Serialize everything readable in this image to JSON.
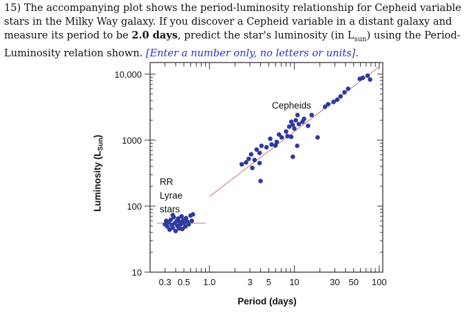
{
  "question": {
    "number": "15)",
    "text_1": "The accompanying plot shows the period-luminosity relationship for Cepheid variable stars in the Milky Way galaxy.  If you discover a Cepheid variable in a distant galaxy and measure its period to be ",
    "bold_period": "2.0 days",
    "text_2": ", predict the star's luminosity (in L",
    "sub_sun": "sun",
    "text_3": ") using the Period-Luminosity relation shown.  ",
    "instruction": "[Enter a number only, no letters or units]."
  },
  "chart_data": {
    "type": "scatter",
    "xscale": "log",
    "yscale": "log",
    "xlim": [
      0.2,
      110
    ],
    "ylim": [
      10,
      15000
    ],
    "x_ticks": [
      0.3,
      0.5,
      1.0,
      3,
      5,
      10,
      30,
      50,
      100
    ],
    "x_tick_labels": [
      "0.3",
      "0.5",
      "1.0",
      "3",
      "5",
      "10",
      "30",
      "50",
      "100"
    ],
    "y_ticks": [
      10,
      100,
      1000,
      10000
    ],
    "y_tick_labels": [
      "10",
      "100",
      "1000",
      "10,000"
    ],
    "xlabel": "Period (days)",
    "ylabel_main": "Luminosity (L",
    "ylabel_sub": "Sun",
    "ylabel_end": ")",
    "point_color": "#2e3a9e",
    "line_color": "#c97070",
    "annotations": {
      "cepheids": "Cepheids",
      "rr_lyrae": [
        "RR",
        "Lyrae",
        "stars"
      ]
    },
    "series": [
      {
        "name": "Cepheids",
        "points": [
          [
            2.4,
            430
          ],
          [
            2.7,
            460
          ],
          [
            2.9,
            520
          ],
          [
            3.1,
            610
          ],
          [
            3.4,
            500
          ],
          [
            3.6,
            720
          ],
          [
            3.9,
            640
          ],
          [
            3.2,
            380
          ],
          [
            4.1,
            820
          ],
          [
            3.9,
            450
          ],
          [
            4.7,
            780
          ],
          [
            5.2,
            1050
          ],
          [
            5.4,
            860
          ],
          [
            4.0,
            240
          ],
          [
            6.0,
            830
          ],
          [
            6.2,
            940
          ],
          [
            6.6,
            1220
          ],
          [
            7.1,
            1100
          ],
          [
            8.0,
            1350
          ],
          [
            8.3,
            1150
          ],
          [
            8.7,
            1600
          ],
          [
            9.2,
            1900
          ],
          [
            9.6,
            1700
          ],
          [
            10.0,
            1500
          ],
          [
            10.4,
            2000
          ],
          [
            10.9,
            2400
          ],
          [
            11.3,
            1750
          ],
          [
            12.5,
            1900
          ],
          [
            13.0,
            2100
          ],
          [
            14.5,
            1650
          ],
          [
            10.8,
            820
          ],
          [
            9.6,
            560
          ],
          [
            9.2,
            1120
          ],
          [
            16.0,
            2400
          ],
          [
            18.8,
            1100
          ],
          [
            23.0,
            3200
          ],
          [
            25.0,
            3500
          ],
          [
            29.0,
            3800
          ],
          [
            32.0,
            4100
          ],
          [
            35.0,
            4600
          ],
          [
            39.0,
            5300
          ],
          [
            43.0,
            6000
          ],
          [
            59.0,
            8500
          ],
          [
            64.0,
            8800
          ],
          [
            73.0,
            9500
          ],
          [
            78.0,
            8300
          ]
        ]
      },
      {
        "name": "RR Lyrae stars",
        "points": [
          [
            0.3,
            53
          ],
          [
            0.31,
            60
          ],
          [
            0.32,
            49
          ],
          [
            0.33,
            57
          ],
          [
            0.34,
            44
          ],
          [
            0.35,
            62
          ],
          [
            0.36,
            52
          ],
          [
            0.37,
            47
          ],
          [
            0.38,
            68
          ],
          [
            0.39,
            55
          ],
          [
            0.4,
            42
          ],
          [
            0.41,
            59
          ],
          [
            0.42,
            50
          ],
          [
            0.43,
            65
          ],
          [
            0.44,
            46
          ],
          [
            0.45,
            57
          ],
          [
            0.46,
            53
          ],
          [
            0.47,
            70
          ],
          [
            0.48,
            45
          ],
          [
            0.49,
            61
          ],
          [
            0.5,
            56
          ],
          [
            0.52,
            49
          ],
          [
            0.53,
            66
          ],
          [
            0.55,
            58
          ],
          [
            0.57,
            53
          ],
          [
            0.6,
            72
          ],
          [
            0.62,
            60
          ],
          [
            0.64,
            75
          ],
          [
            0.37,
            73
          ]
        ]
      }
    ],
    "fit_line": {
      "x1": 1.0,
      "y1": 140,
      "x2": 100,
      "y2": 13000
    },
    "rr_lyrae_line": {
      "x1": 0.24,
      "x2": 0.9,
      "y": 55
    }
  }
}
